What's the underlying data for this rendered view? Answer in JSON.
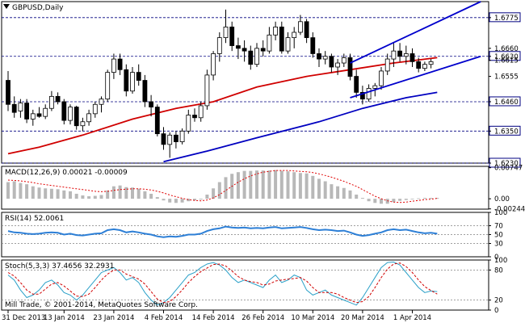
{
  "chart_data": [
    {
      "type": "candlestick",
      "panel": "price",
      "title": "GBPUSD,Daily",
      "ylim": [
        1.623,
        1.6835
      ],
      "y_ticks": [
        "1.6775",
        "1.6660",
        "1.6630",
        "1.6615",
        "1.6555",
        "1.6460",
        "1.6350",
        "1.6230"
      ],
      "price_levels": [
        {
          "value": 1.6775,
          "label": "1.6775",
          "style": "dashed",
          "highlight": true
        },
        {
          "value": 1.663,
          "label": "1.6630",
          "style": "dashed",
          "highlight": true
        },
        {
          "value": 1.646,
          "label": "1.6460",
          "style": "dashed",
          "highlight": true
        },
        {
          "value": 1.635,
          "label": "1.6350",
          "style": "dashed",
          "highlight": true
        },
        {
          "value": 1.623,
          "label": "1.6230",
          "style": "dashed",
          "highlight": true
        }
      ],
      "x_labels": [
        "31 Dec 2013",
        "13 Jan 2014",
        "23 Jan 2014",
        "4 Feb 2014",
        "14 Feb 2014",
        "26 Feb 2014",
        "10 Mar 2014",
        "20 Mar 2014",
        "1 Apr 2014"
      ],
      "candles": [
        {
          "o": 1.654,
          "h": 1.6575,
          "l": 1.6425,
          "c": 1.645
        },
        {
          "o": 1.645,
          "h": 1.648,
          "l": 1.64,
          "c": 1.642
        },
        {
          "o": 1.6425,
          "h": 1.647,
          "l": 1.64,
          "c": 1.6455
        },
        {
          "o": 1.6455,
          "h": 1.647,
          "l": 1.638,
          "c": 1.6395
        },
        {
          "o": 1.6395,
          "h": 1.643,
          "l": 1.637,
          "c": 1.6415
        },
        {
          "o": 1.6415,
          "h": 1.644,
          "l": 1.64,
          "c": 1.6405
        },
        {
          "o": 1.6405,
          "h": 1.645,
          "l": 1.6395,
          "c": 1.6435
        },
        {
          "o": 1.6435,
          "h": 1.65,
          "l": 1.6425,
          "c": 1.648
        },
        {
          "o": 1.648,
          "h": 1.6495,
          "l": 1.645,
          "c": 1.646
        },
        {
          "o": 1.646,
          "h": 1.647,
          "l": 1.6375,
          "c": 1.639
        },
        {
          "o": 1.639,
          "h": 1.645,
          "l": 1.6375,
          "c": 1.644
        },
        {
          "o": 1.644,
          "h": 1.6445,
          "l": 1.6355,
          "c": 1.637
        },
        {
          "o": 1.637,
          "h": 1.64,
          "l": 1.635,
          "c": 1.6385
        },
        {
          "o": 1.6385,
          "h": 1.643,
          "l": 1.637,
          "c": 1.6415
        },
        {
          "o": 1.6415,
          "h": 1.646,
          "l": 1.64,
          "c": 1.645
        },
        {
          "o": 1.645,
          "h": 1.648,
          "l": 1.642,
          "c": 1.647
        },
        {
          "o": 1.647,
          "h": 1.658,
          "l": 1.646,
          "c": 1.657
        },
        {
          "o": 1.657,
          "h": 1.664,
          "l": 1.6545,
          "c": 1.662
        },
        {
          "o": 1.662,
          "h": 1.664,
          "l": 1.656,
          "c": 1.658
        },
        {
          "o": 1.658,
          "h": 1.66,
          "l": 1.648,
          "c": 1.65
        },
        {
          "o": 1.65,
          "h": 1.659,
          "l": 1.649,
          "c": 1.657
        },
        {
          "o": 1.657,
          "h": 1.66,
          "l": 1.652,
          "c": 1.654
        },
        {
          "o": 1.654,
          "h": 1.656,
          "l": 1.644,
          "c": 1.646
        },
        {
          "o": 1.646,
          "h": 1.6485,
          "l": 1.6405,
          "c": 1.644
        },
        {
          "o": 1.644,
          "h": 1.645,
          "l": 1.633,
          "c": 1.634
        },
        {
          "o": 1.634,
          "h": 1.6365,
          "l": 1.628,
          "c": 1.63
        },
        {
          "o": 1.63,
          "h": 1.6345,
          "l": 1.625,
          "c": 1.6335
        },
        {
          "o": 1.6335,
          "h": 1.635,
          "l": 1.6285,
          "c": 1.631
        },
        {
          "o": 1.631,
          "h": 1.636,
          "l": 1.63,
          "c": 1.635
        },
        {
          "o": 1.635,
          "h": 1.643,
          "l": 1.634,
          "c": 1.641
        },
        {
          "o": 1.641,
          "h": 1.6435,
          "l": 1.6385,
          "c": 1.64
        },
        {
          "o": 1.64,
          "h": 1.646,
          "l": 1.6385,
          "c": 1.6445
        },
        {
          "o": 1.6445,
          "h": 1.658,
          "l": 1.643,
          "c": 1.656
        },
        {
          "o": 1.656,
          "h": 1.665,
          "l": 1.654,
          "c": 1.664
        },
        {
          "o": 1.664,
          "h": 1.672,
          "l": 1.661,
          "c": 1.67
        },
        {
          "o": 1.67,
          "h": 1.6805,
          "l": 1.668,
          "c": 1.674
        },
        {
          "o": 1.674,
          "h": 1.676,
          "l": 1.665,
          "c": 1.667
        },
        {
          "o": 1.667,
          "h": 1.67,
          "l": 1.662,
          "c": 1.666
        },
        {
          "o": 1.666,
          "h": 1.669,
          "l": 1.661,
          "c": 1.665
        },
        {
          "o": 1.665,
          "h": 1.667,
          "l": 1.658,
          "c": 1.66
        },
        {
          "o": 1.66,
          "h": 1.668,
          "l": 1.659,
          "c": 1.666
        },
        {
          "o": 1.666,
          "h": 1.669,
          "l": 1.663,
          "c": 1.665
        },
        {
          "o": 1.665,
          "h": 1.674,
          "l": 1.664,
          "c": 1.671
        },
        {
          "o": 1.671,
          "h": 1.676,
          "l": 1.669,
          "c": 1.674
        },
        {
          "o": 1.674,
          "h": 1.676,
          "l": 1.664,
          "c": 1.665
        },
        {
          "o": 1.665,
          "h": 1.672,
          "l": 1.664,
          "c": 1.67
        },
        {
          "o": 1.67,
          "h": 1.674,
          "l": 1.666,
          "c": 1.672
        },
        {
          "o": 1.672,
          "h": 1.6785,
          "l": 1.671,
          "c": 1.676
        },
        {
          "o": 1.676,
          "h": 1.677,
          "l": 1.668,
          "c": 1.67
        },
        {
          "o": 1.67,
          "h": 1.672,
          "l": 1.6625,
          "c": 1.664
        },
        {
          "o": 1.664,
          "h": 1.666,
          "l": 1.659,
          "c": 1.662
        },
        {
          "o": 1.662,
          "h": 1.665,
          "l": 1.66,
          "c": 1.663
        },
        {
          "o": 1.663,
          "h": 1.664,
          "l": 1.657,
          "c": 1.659
        },
        {
          "o": 1.659,
          "h": 1.662,
          "l": 1.656,
          "c": 1.6605
        },
        {
          "o": 1.6605,
          "h": 1.664,
          "l": 1.659,
          "c": 1.6625
        },
        {
          "o": 1.6625,
          "h": 1.664,
          "l": 1.654,
          "c": 1.6555
        },
        {
          "o": 1.6555,
          "h": 1.658,
          "l": 1.6475,
          "c": 1.6495
        },
        {
          "o": 1.6495,
          "h": 1.652,
          "l": 1.645,
          "c": 1.647
        },
        {
          "o": 1.647,
          "h": 1.6525,
          "l": 1.646,
          "c": 1.651
        },
        {
          "o": 1.651,
          "h": 1.653,
          "l": 1.648,
          "c": 1.652
        },
        {
          "o": 1.652,
          "h": 1.659,
          "l": 1.6505,
          "c": 1.6575
        },
        {
          "o": 1.6575,
          "h": 1.664,
          "l": 1.656,
          "c": 1.662
        },
        {
          "o": 1.662,
          "h": 1.668,
          "l": 1.659,
          "c": 1.665
        },
        {
          "o": 1.665,
          "h": 1.668,
          "l": 1.661,
          "c": 1.663
        },
        {
          "o": 1.663,
          "h": 1.667,
          "l": 1.66,
          "c": 1.664
        },
        {
          "o": 1.664,
          "h": 1.666,
          "l": 1.659,
          "c": 1.661
        },
        {
          "o": 1.661,
          "h": 1.6625,
          "l": 1.657,
          "c": 1.6585
        },
        {
          "o": 1.6585,
          "h": 1.661,
          "l": 1.6575,
          "c": 1.66
        },
        {
          "o": 1.66,
          "h": 1.662,
          "l": 1.6585,
          "c": 1.661
        }
      ],
      "indicators": [
        {
          "name": "MA (red)",
          "color": "#d00000",
          "points": [
            [
              0,
              1.6265
            ],
            [
              5,
              1.629
            ],
            [
              12,
              1.6335
            ],
            [
              20,
              1.6395
            ],
            [
              27,
              1.6435
            ],
            [
              33,
              1.646
            ],
            [
              40,
              1.6515
            ],
            [
              48,
              1.6555
            ],
            [
              55,
              1.658
            ],
            [
              62,
              1.6605
            ],
            [
              69,
              1.6625
            ]
          ]
        },
        {
          "name": "MA (blue)",
          "color": "#0000c0",
          "points": [
            [
              25,
              1.6235
            ],
            [
              32,
              1.6275
            ],
            [
              40,
              1.6325
            ],
            [
              50,
              1.6385
            ],
            [
              57,
              1.6435
            ],
            [
              64,
              1.6475
            ],
            [
              69,
              1.6495
            ]
          ]
        }
      ],
      "trendlines": [
        {
          "color": "#0000cc",
          "points": [
            [
              55,
              1.6605
            ],
            [
              76,
              1.6835
            ]
          ]
        },
        {
          "color": "#0000cc",
          "points": [
            [
              55,
              1.6475
            ],
            [
              76,
              1.663
            ]
          ]
        }
      ]
    },
    {
      "type": "bar",
      "panel": "macd",
      "title": "MACD(12,26,9) 0.00021 -0.00009",
      "ylim": [
        -0.0025,
        0.0078
      ],
      "y_ticks": [
        "0.00747",
        "0.00",
        "-0.00244"
      ],
      "values": [
        0.004,
        0.0042,
        0.0038,
        0.0035,
        0.003,
        0.0027,
        0.0025,
        0.0024,
        0.0023,
        0.002,
        0.0018,
        0.0012,
        0.0008,
        0.0006,
        0.0007,
        0.0009,
        0.002,
        0.003,
        0.0032,
        0.0028,
        0.0027,
        0.0024,
        0.0018,
        0.0012,
        0.0004,
        -0.0004,
        -0.0009,
        -0.001,
        -0.0009,
        -0.0006,
        -0.0004,
        -0.0002,
        0.001,
        0.0025,
        0.004,
        0.0052,
        0.006,
        0.0064,
        0.0067,
        0.0067,
        0.0068,
        0.0068,
        0.0068,
        0.0069,
        0.0067,
        0.0066,
        0.0064,
        0.0062,
        0.0061,
        0.0055,
        0.0048,
        0.0042,
        0.0035,
        0.003,
        0.0026,
        0.002,
        0.001,
        0.0002,
        -0.0006,
        -0.001,
        -0.0012,
        -0.0012,
        -0.0008,
        -0.0005,
        -0.0003,
        0.0,
        0.0001,
        0.0002,
        0.0002,
        0.0002
      ],
      "signal": [
        0.0045,
        0.0044,
        0.0043,
        0.0041,
        0.0039,
        0.0036,
        0.0034,
        0.0032,
        0.003,
        0.0028,
        0.0026,
        0.0024,
        0.0022,
        0.002,
        0.0018,
        0.0017,
        0.0018,
        0.002,
        0.0022,
        0.0023,
        0.0024,
        0.0024,
        0.0023,
        0.0021,
        0.0018,
        0.0014,
        0.0009,
        0.0005,
        0.0001,
        -0.0002,
        -0.0004,
        -0.0005,
        -0.0003,
        0.0002,
        0.001,
        0.002,
        0.003,
        0.004,
        0.0048,
        0.0055,
        0.006,
        0.0064,
        0.0066,
        0.0068,
        0.0068,
        0.0068,
        0.0067,
        0.0066,
        0.0065,
        0.0063,
        0.006,
        0.0056,
        0.0052,
        0.0047,
        0.0042,
        0.0036,
        0.003,
        0.0022,
        0.0014,
        0.0006,
        0.0,
        -0.0005,
        -0.0008,
        -0.0009,
        -0.0008,
        -0.0006,
        -0.0004,
        -0.0002,
        -0.0001,
        0.0001
      ]
    },
    {
      "type": "line",
      "panel": "rsi",
      "title": "RSI(14) 52.0061",
      "ylim": [
        0,
        100
      ],
      "y_ticks": [
        "100",
        "70",
        "50",
        "30",
        "0"
      ],
      "levels": [
        70,
        50,
        30
      ],
      "values": [
        58,
        55,
        54,
        52,
        51,
        52,
        54,
        55,
        54,
        50,
        52,
        49,
        48,
        50,
        52,
        53,
        60,
        62,
        60,
        55,
        57,
        55,
        52,
        50,
        46,
        44,
        46,
        45,
        47,
        50,
        50,
        52,
        58,
        62,
        64,
        68,
        66,
        65,
        66,
        64,
        65,
        64,
        66,
        67,
        64,
        65,
        66,
        67,
        65,
        62,
        60,
        61,
        60,
        58,
        59,
        55,
        50,
        47,
        49,
        52,
        55,
        60,
        62,
        60,
        61,
        58,
        55,
        53,
        54,
        52
      ]
    },
    {
      "type": "line",
      "panel": "stochastic",
      "title": "Stoch(5,3,3) 37.4656 32.2931",
      "ylim": [
        0,
        100
      ],
      "y_ticks": [
        "100",
        "80",
        "20",
        "0"
      ],
      "levels": [
        80,
        20
      ],
      "series": [
        {
          "name": "%K",
          "color": "#2aa0c8",
          "values": [
            70,
            60,
            40,
            25,
            30,
            40,
            55,
            60,
            50,
            35,
            30,
            20,
            30,
            45,
            60,
            75,
            80,
            85,
            75,
            60,
            65,
            55,
            35,
            20,
            10,
            15,
            25,
            40,
            55,
            70,
            75,
            85,
            92,
            95,
            90,
            80,
            65,
            55,
            60,
            55,
            50,
            45,
            60,
            70,
            55,
            60,
            70,
            65,
            40,
            30,
            35,
            40,
            30,
            25,
            20,
            15,
            10,
            25,
            45,
            65,
            85,
            95,
            96,
            90,
            75,
            60,
            45,
            35,
            38,
            37
          ]
        },
        {
          "name": "%D",
          "color": "#d00000",
          "values": [
            75,
            68,
            55,
            40,
            32,
            32,
            42,
            52,
            55,
            48,
            38,
            28,
            27,
            32,
            45,
            60,
            72,
            80,
            80,
            72,
            67,
            62,
            52,
            37,
            22,
            15,
            17,
            27,
            40,
            55,
            67,
            77,
            84,
            91,
            92,
            88,
            78,
            67,
            60,
            57,
            55,
            50,
            52,
            58,
            60,
            62,
            63,
            65,
            58,
            45,
            35,
            35,
            35,
            32,
            25,
            20,
            15,
            17,
            27,
            45,
            65,
            82,
            92,
            94,
            87,
            75,
            60,
            47,
            39,
            32
          ]
        }
      ]
    }
  ],
  "footer": {
    "copyright": "Mill Trade, © 2001-2014, MetaQuotes Software Corp."
  }
}
